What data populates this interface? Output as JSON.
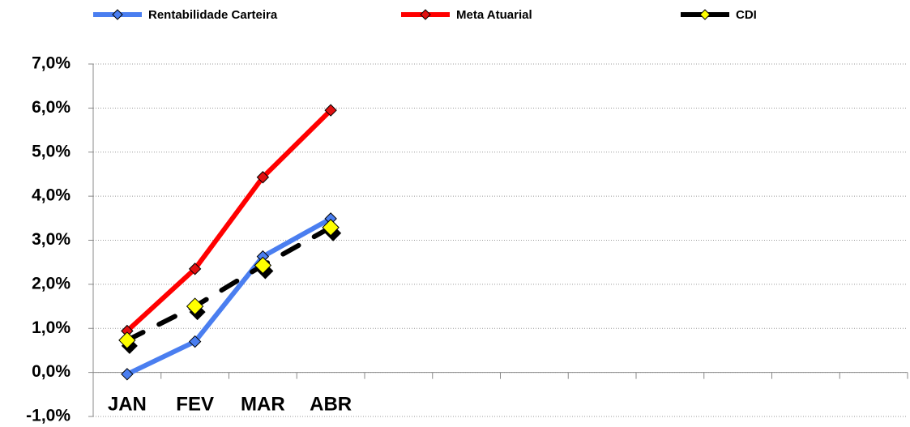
{
  "chart_data": {
    "type": "line",
    "categories": [
      "JAN",
      "FEV",
      "MAR",
      "ABR",
      null,
      null,
      null,
      null,
      null,
      null,
      null,
      null
    ],
    "series": [
      {
        "name": "Rentabilidade Carteira",
        "color": "#4a7ef0",
        "marker_color": "#4a7ef0",
        "values": [
          -0.04,
          0.7,
          2.63,
          3.49,
          null,
          null,
          null,
          null,
          null,
          null,
          null,
          null
        ]
      },
      {
        "name": "Meta Atuarial",
        "color": "#ff0000",
        "marker_color": "#e01010",
        "values": [
          0.94,
          2.35,
          4.43,
          5.95,
          null,
          null,
          null,
          null,
          null,
          null,
          null,
          null
        ]
      },
      {
        "name": "CDI",
        "color": "#000000",
        "marker_color": "#ffff00",
        "dashed": true,
        "values": [
          0.73,
          1.5,
          2.43,
          3.29,
          null,
          null,
          null,
          null,
          null,
          null,
          null,
          null
        ]
      }
    ],
    "ylim": [
      -1,
      7
    ],
    "yticks": [
      {
        "value": -1,
        "label": "-1,0%"
      },
      {
        "value": 0,
        "label": "0,0%"
      },
      {
        "value": 1,
        "label": "1,0%"
      },
      {
        "value": 2,
        "label": "2,0%"
      },
      {
        "value": 3,
        "label": "3,0%"
      },
      {
        "value": 4,
        "label": "4,0%"
      },
      {
        "value": 5,
        "label": "5,0%"
      },
      {
        "value": 6,
        "label": "6,0%"
      },
      {
        "value": 7,
        "label": "7,0%"
      }
    ],
    "grid": true
  }
}
